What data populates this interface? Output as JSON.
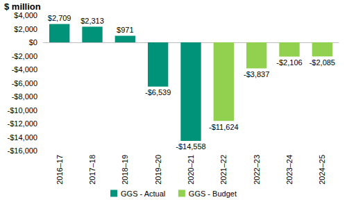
{
  "chart_data": {
    "type": "bar",
    "y_label": "$ million",
    "categories": [
      "2016–17",
      "2017–18",
      "2018–19",
      "2019–20",
      "2020–21",
      "2021–22",
      "2022–23",
      "2023–24",
      "2024–25"
    ],
    "series": [
      {
        "name": "GGS - Actual",
        "color": "#00937a",
        "values": [
          2709,
          2313,
          971,
          -6539,
          -14558,
          null,
          null,
          null,
          null
        ],
        "value_labels": [
          "$2,709",
          "$2,313",
          "$971",
          "-$6,539",
          "-$14,558",
          null,
          null,
          null,
          null
        ]
      },
      {
        "name": "GGS - Budget",
        "color": "#92d050",
        "values": [
          null,
          null,
          null,
          null,
          null,
          -11624,
          -3837,
          -2106,
          -2085
        ],
        "value_labels": [
          null,
          null,
          null,
          null,
          null,
          "-$11,624",
          "-$3,837",
          "-$2,106",
          "-$2,085"
        ]
      }
    ],
    "ylim": [
      -16000,
      4000
    ],
    "yticks": [
      {
        "value": -16000,
        "label": "-$16,000"
      },
      {
        "value": -14000,
        "label": "-$14,000"
      },
      {
        "value": -12000,
        "label": "-$12,000"
      },
      {
        "value": -10000,
        "label": "-$10,000"
      },
      {
        "value": -8000,
        "label": "-$8,000"
      },
      {
        "value": -6000,
        "label": "-$6,000"
      },
      {
        "value": -4000,
        "label": "-$4,000"
      },
      {
        "value": -2000,
        "label": "-$2,000"
      },
      {
        "value": 0,
        "label": "$0"
      },
      {
        "value": 2000,
        "label": "$2,000"
      },
      {
        "value": 4000,
        "label": "$4,000"
      }
    ],
    "grid": false,
    "legend": "bottom",
    "data_labels": true
  }
}
